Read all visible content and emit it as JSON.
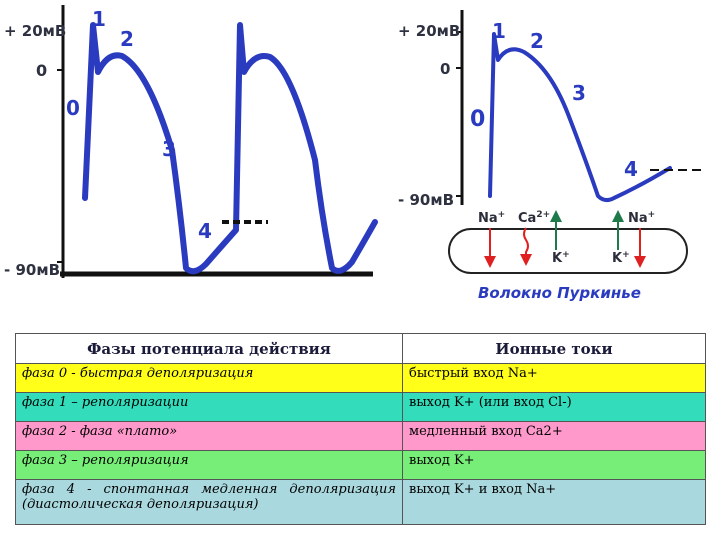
{
  "left_chart": {
    "y_labels": [
      "+ 20мВ",
      "0",
      "- 90мВ"
    ],
    "phase_numbers": [
      "0",
      "1",
      "2",
      "3",
      "4"
    ]
  },
  "right_chart": {
    "y_labels": [
      "+ 20мВ",
      "0",
      "- 90мВ"
    ],
    "phase_numbers": [
      "0",
      "1",
      "2",
      "3",
      "4"
    ],
    "ions": [
      "Na",
      "+",
      "Ca",
      "2+",
      "K",
      "+",
      "K",
      "+",
      "Na",
      "+"
    ],
    "caption": "Волокно Пуркинье",
    "colors": {
      "trace": "#2a3bbf",
      "inward_arrow": "#e02020",
      "outward_arrow": "#1f7a4a"
    }
  },
  "table": {
    "headers": [
      "Фазы потенциала действия",
      "Ионные токи"
    ],
    "rows": [
      {
        "phase": "фаза 0 - быстрая деполяризация",
        "current": "быстрый вход Na+",
        "color": "#ffff1a"
      },
      {
        "phase": "фаза 1 – реполяризации",
        "current": "выход K+ (или вход Cl-)",
        "color": "#33ddbb"
      },
      {
        "phase": "фаза 2 - фаза «плато»",
        "current": "медленный вход Ca2+",
        "color": "#ff99cc"
      },
      {
        "phase": "фаза 3 – реполяризация",
        "current": "выход K+",
        "color": "#77ee77"
      },
      {
        "phase": "фаза 4 - спонтанная медленная деполяризация (диастолическая деполяризация)",
        "current": "выход K+ и вход Na+",
        "color": "#a9d9df"
      }
    ]
  }
}
